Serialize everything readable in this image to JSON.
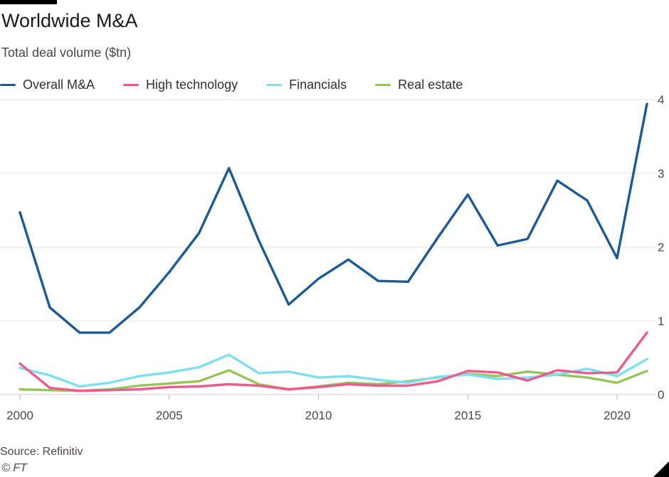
{
  "header": {
    "title": "Worldwide M&A",
    "subtitle": "Total deal volume ($tn)"
  },
  "footer": {
    "source": "Source: Refinitiv",
    "credit": "© FT"
  },
  "chart_data": {
    "type": "line",
    "title": "Worldwide M&A",
    "subtitle": "Total deal volume ($tn)",
    "xlabel": "",
    "ylabel": "",
    "xlim": [
      2000,
      2021
    ],
    "ylim": [
      0,
      4
    ],
    "x_ticks": [
      2000,
      2005,
      2010,
      2015,
      2020
    ],
    "x_tick_labels": [
      "2000",
      "2005",
      "2010",
      "2015",
      "2020"
    ],
    "y_ticks": [
      0,
      1,
      2,
      3,
      4
    ],
    "y_tick_labels": [
      "0",
      "1",
      "2",
      "3",
      "4"
    ],
    "y_axis_position": "right",
    "grid": true,
    "legend_position": "top-left",
    "x": [
      2000,
      2001,
      2002,
      2003,
      2004,
      2005,
      2006,
      2007,
      2008,
      2009,
      2010,
      2011,
      2012,
      2013,
      2014,
      2015,
      2016,
      2017,
      2018,
      2019,
      2020,
      2021
    ],
    "series": [
      {
        "name": "Overall M&A",
        "color": "#1a5a96",
        "values": [
          2.47,
          1.18,
          0.84,
          0.84,
          1.18,
          1.66,
          2.19,
          3.07,
          2.09,
          1.22,
          1.57,
          1.83,
          1.54,
          1.53,
          2.13,
          2.71,
          2.02,
          2.11,
          2.9,
          2.63,
          1.85,
          3.94
        ]
      },
      {
        "name": "High technology",
        "color": "#ef5a8e",
        "values": [
          0.42,
          0.09,
          0.05,
          0.06,
          0.07,
          0.1,
          0.11,
          0.14,
          0.12,
          0.07,
          0.1,
          0.14,
          0.12,
          0.12,
          0.18,
          0.32,
          0.3,
          0.19,
          0.33,
          0.29,
          0.3,
          0.84
        ]
      },
      {
        "name": "Financials",
        "color": "#7ee0ef",
        "values": [
          0.36,
          0.26,
          0.11,
          0.16,
          0.25,
          0.3,
          0.37,
          0.54,
          0.29,
          0.31,
          0.23,
          0.25,
          0.2,
          0.16,
          0.24,
          0.27,
          0.21,
          0.23,
          0.27,
          0.35,
          0.25,
          0.48
        ]
      },
      {
        "name": "Real estate",
        "color": "#96c55a",
        "values": [
          0.07,
          0.06,
          0.05,
          0.07,
          0.12,
          0.15,
          0.18,
          0.33,
          0.14,
          0.07,
          0.11,
          0.16,
          0.14,
          0.18,
          0.23,
          0.28,
          0.25,
          0.31,
          0.27,
          0.23,
          0.16,
          0.32
        ]
      }
    ]
  }
}
